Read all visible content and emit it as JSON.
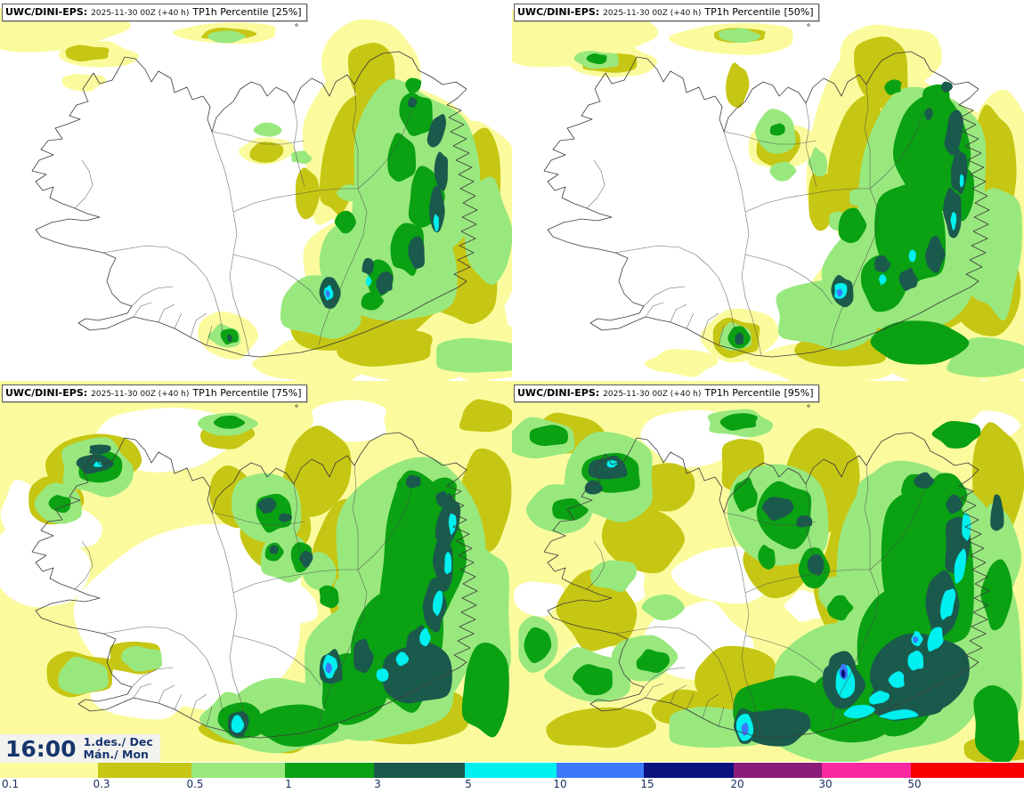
{
  "header": {
    "model": "UWC/DINI-EPS:",
    "run": "2025-11-30 00Z (+40 h)",
    "variable": "TP1h Percentile"
  },
  "panels": [
    {
      "percentile": "[25%]"
    },
    {
      "percentile": "[50%]"
    },
    {
      "percentile": "[75%]"
    },
    {
      "percentile": "[95%]"
    }
  ],
  "timebox": {
    "clock": "16:00",
    "date_local": "1.des./ Dec",
    "day_local": "Mán./ Mon"
  },
  "colorbar": {
    "tick_values": [
      "0.1",
      "0.3",
      "0.5",
      "1",
      "3",
      "5",
      "10",
      "15",
      "20",
      "30",
      "50"
    ],
    "colors": [
      "#fbfb9e",
      "#c6c614",
      "#99e87e",
      "#0aa113",
      "#1a5a4c",
      "#00efef",
      "#3c78fa",
      "#0a1280",
      "#8b1c79",
      "#fc28a0",
      "#f80000"
    ],
    "label_color": "#1a3060"
  }
}
